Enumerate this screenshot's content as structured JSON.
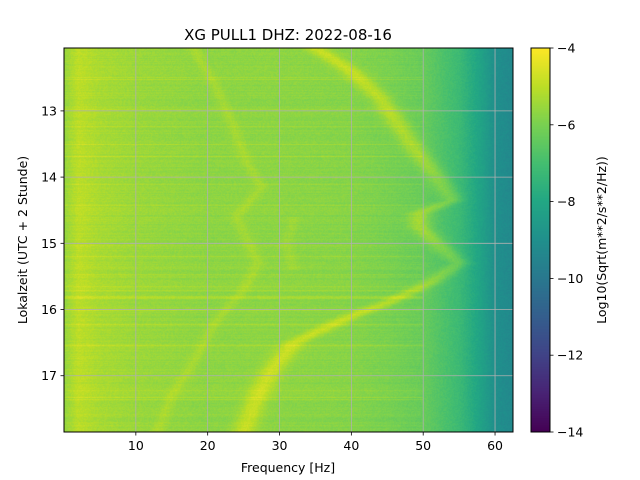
{
  "chart_data": {
    "type": "heatmap",
    "title": "XG PULL1  DHZ: 2022-08-16",
    "xlabel": "Frequency [Hz]",
    "ylabel": "Lokalzeit (UTC + 2 Stunde)",
    "colorbar_label": "Log10(Sqrt(m**2/s**2/Hz))",
    "colormap": "viridis",
    "xlim": [
      0,
      62.5
    ],
    "ylim": [
      17.85,
      12.05
    ],
    "y_inverted": true,
    "grid": true,
    "x_ticks": [
      10,
      20,
      30,
      40,
      50,
      60
    ],
    "y_ticks": [
      13,
      14,
      15,
      16,
      17
    ],
    "clim": [
      -14,
      -4
    ],
    "colorbar_ticks": [
      -4,
      -6,
      -8,
      -10,
      -12,
      -14
    ],
    "colorbar_tick_labels": [
      "−4",
      "−6",
      "−8",
      "−10",
      "−12",
      "−14"
    ],
    "value_profile_by_frequency": {
      "frequency": [
        0,
        2,
        5,
        10,
        20,
        30,
        40,
        45,
        50,
        55,
        58,
        60,
        62.5
      ],
      "log10_psd": [
        -5.6,
        -5.0,
        -5.3,
        -5.5,
        -5.7,
        -5.7,
        -5.8,
        -6.0,
        -6.3,
        -7.2,
        -8.2,
        -9.0,
        -9.3
      ]
    },
    "resonance_track_main": {
      "time": [
        12.05,
        12.4,
        12.8,
        13.2,
        13.6,
        14.0,
        14.35,
        14.55,
        14.75,
        15.0,
        15.3,
        15.6,
        15.9,
        16.1,
        16.5,
        16.9,
        17.3,
        17.85
      ],
      "frequency": [
        35,
        40,
        44,
        46.5,
        49,
        52,
        54,
        49.5,
        49.5,
        52,
        55,
        51,
        45,
        40,
        32,
        29,
        27,
        25
      ]
    },
    "resonance_track_secondary": {
      "time": [
        12.05,
        12.6,
        13.2,
        13.8,
        14.15,
        14.6,
        15.3,
        15.7,
        16.2,
        16.8,
        17.3,
        17.85
      ],
      "frequency": [
        18,
        21,
        23.5,
        25.5,
        27.5,
        24,
        27,
        25,
        21,
        18,
        15,
        13
      ]
    },
    "resonance_track_tertiary": {
      "time": [
        14.6,
        15.0,
        15.4
      ],
      "frequency": [
        32,
        31,
        32
      ]
    }
  }
}
